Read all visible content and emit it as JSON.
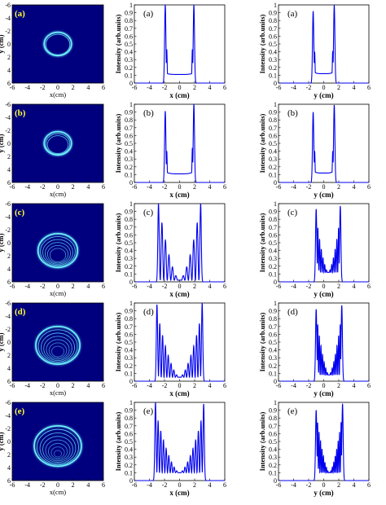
{
  "colors": {
    "line": "#0000ee",
    "image_bg": "#00007f",
    "ring": "#6ff3ff",
    "panel_label_on_image": "#ffff33"
  },
  "image_axes": {
    "xlabel": "x(cm)",
    "ylabel": "y (cm)",
    "xticks": [
      "-6",
      "-4",
      "-2",
      "0",
      "2",
      "4",
      "6"
    ],
    "yticks": [
      "-6",
      "-4",
      "-2",
      "0",
      "2",
      "4",
      "6"
    ]
  },
  "plot_axes": {
    "xticks": [
      "-6",
      "-4",
      "-2",
      "0",
      "2",
      "4",
      "6"
    ],
    "yticks": [
      "0",
      "0.1",
      "0.2",
      "0.3",
      "0.4",
      "0.5",
      "0.6",
      "0.7",
      "0.8",
      "0.9",
      "1"
    ],
    "xlim": [
      -6,
      6
    ],
    "ylim": [
      0,
      1
    ]
  },
  "chart_data": [
    {
      "type": "heatmap",
      "panel": "(a)",
      "xlabel": "x(cm)",
      "ylabel": "y (cm)",
      "xlim": [
        -6,
        6
      ],
      "ylim": [
        6,
        -6
      ],
      "ring_center": [
        0,
        0
      ],
      "ring_radius": 1.8,
      "inner_rings": 1
    },
    {
      "type": "line",
      "panel": "(a)",
      "xlabel": "x (cm)",
      "ylabel": "Intensity (arb.units)",
      "xlim": [
        -6,
        6
      ],
      "ylim": [
        0,
        1
      ],
      "peaks": [
        {
          "x": -1.9,
          "y": 1.0
        },
        {
          "x": 1.9,
          "y": 1.0
        }
      ],
      "shoulder_peaks": [
        {
          "x": -1.7,
          "y": 0.43
        },
        {
          "x": 1.7,
          "y": 0.43
        }
      ],
      "inner_level": 0.13,
      "ripple_amplitude": 0,
      "ripple_count": 0,
      "center_min": 0.11
    },
    {
      "type": "line",
      "panel": "(a)",
      "xlabel": "y (cm)",
      "ylabel": "Intensity (arb.units)",
      "xlim": [
        -6,
        6
      ],
      "ylim": [
        0,
        1
      ],
      "peaks": [
        {
          "x": -1.4,
          "y": 0.92
        },
        {
          "x": 1.4,
          "y": 1.0
        }
      ],
      "shoulder_peaks": [
        {
          "x": -1.2,
          "y": 0.4
        },
        {
          "x": 1.2,
          "y": 0.41
        }
      ],
      "inner_level": 0.15,
      "ripple_amplitude": 0,
      "ripple_count": 0,
      "center_min": 0.12
    },
    {
      "type": "heatmap",
      "panel": "(b)",
      "xlabel": "x(cm)",
      "ylabel": "y (cm)",
      "xlim": [
        -6,
        6
      ],
      "ylim": [
        6,
        -6
      ],
      "ring_center": [
        0,
        0
      ],
      "ring_radius": 1.8,
      "inner_rings": 2
    },
    {
      "type": "line",
      "panel": "(b)",
      "xlabel": "x (cm)",
      "ylabel": "Intensity (arb.units)",
      "xlim": [
        -6,
        6
      ],
      "ylim": [
        0,
        1
      ],
      "peaks": [
        {
          "x": -1.9,
          "y": 0.91
        },
        {
          "x": 1.9,
          "y": 1.0
        }
      ],
      "shoulder_peaks": [
        {
          "x": -1.7,
          "y": 0.4
        },
        {
          "x": 1.7,
          "y": 0.44
        }
      ],
      "inner_level": 0.14,
      "ripple_amplitude": 0,
      "ripple_count": 0,
      "center_min": 0.11
    },
    {
      "type": "line",
      "panel": "(b)",
      "xlabel": "y (cm)",
      "ylabel": "Intensity (arb.units)",
      "xlim": [
        -6,
        6
      ],
      "ylim": [
        0,
        1
      ],
      "peaks": [
        {
          "x": -1.4,
          "y": 0.9
        },
        {
          "x": 1.4,
          "y": 0.99
        }
      ],
      "shoulder_peaks": [
        {
          "x": -1.2,
          "y": 0.4
        },
        {
          "x": 1.2,
          "y": 0.4
        }
      ],
      "inner_level": 0.15,
      "ripple_amplitude": 0,
      "ripple_count": 0,
      "center_min": 0.12
    },
    {
      "type": "heatmap",
      "panel": "(c)",
      "xlabel": "x(cm)",
      "ylabel": "y (cm)",
      "xlim": [
        -6,
        6
      ],
      "ylim": [
        6,
        -6
      ],
      "ring_center": [
        0,
        1.2
      ],
      "ring_radius": 2.6,
      "inner_rings": 5
    },
    {
      "type": "line",
      "panel": "(c)",
      "xlabel": "x (cm)",
      "ylabel": "Intensity (arb.units)",
      "xlim": [
        -6,
        6
      ],
      "ylim": [
        0,
        1
      ],
      "peaks": [
        {
          "x": -2.8,
          "y": 1.0
        },
        {
          "x": 2.8,
          "y": 1.0
        }
      ],
      "shoulder_peaks": [],
      "inner_level": 0.55,
      "ripple_amplitude": 0.45,
      "ripple_count": 12,
      "center_min": 0.02
    },
    {
      "type": "line",
      "panel": "(c)",
      "xlabel": "y (cm)",
      "ylabel": "Intensity (arb.units)",
      "xlim": [
        -6,
        6
      ],
      "ylim": [
        0,
        1
      ],
      "peaks": [
        {
          "x": -1.0,
          "y": 0.93
        },
        {
          "x": 2.2,
          "y": 0.97
        }
      ],
      "shoulder_peaks": [
        {
          "x": -0.7,
          "y": 0.25
        }
      ],
      "inner_level": 0.55,
      "ripple_amplitude": 0.3,
      "ripple_count": 14,
      "center_min": 0.12
    },
    {
      "type": "heatmap",
      "panel": "(d)",
      "xlabel": "x(cm)",
      "ylabel": "y (cm)",
      "xlim": [
        -6,
        6
      ],
      "ylim": [
        6,
        -6
      ],
      "ring_center": [
        0,
        0.5
      ],
      "ring_radius": 2.9,
      "inner_rings": 6
    },
    {
      "type": "line",
      "panel": "(d)",
      "xlabel": "x (cm)",
      "ylabel": "Intensity (arb.units)",
      "xlim": [
        -6,
        6
      ],
      "ylim": [
        0,
        1
      ],
      "peaks": [
        {
          "x": -3.0,
          "y": 0.98
        },
        {
          "x": 3.0,
          "y": 1.0
        }
      ],
      "shoulder_peaks": [],
      "inner_level": 0.5,
      "ripple_amplitude": 0.4,
      "ripple_count": 16,
      "center_min": 0.05
    },
    {
      "type": "line",
      "panel": "(d)",
      "xlabel": "y (cm)",
      "ylabel": "Intensity (arb.units)",
      "xlim": [
        -6,
        6
      ],
      "ylim": [
        0,
        1
      ],
      "peaks": [
        {
          "x": -1.0,
          "y": 0.92
        },
        {
          "x": 2.4,
          "y": 0.97
        }
      ],
      "shoulder_peaks": [
        {
          "x": -0.7,
          "y": 0.13
        }
      ],
      "inner_level": 0.55,
      "ripple_amplitude": 0.33,
      "ripple_count": 16,
      "center_min": 0.08
    },
    {
      "type": "heatmap",
      "panel": "(e)",
      "xlabel": "x(cm)",
      "ylabel": "y (cm)",
      "xlim": [
        -6,
        6
      ],
      "ylim": [
        6,
        -6
      ],
      "ring_center": [
        0,
        0.7
      ],
      "ring_radius": 3.1,
      "inner_rings": 7
    },
    {
      "type": "line",
      "panel": "(e)",
      "xlabel": "x (cm)",
      "ylabel": "Intensity (arb.units)",
      "xlim": [
        -6,
        6
      ],
      "ylim": [
        0,
        1
      ],
      "peaks": [
        {
          "x": -3.2,
          "y": 1.0
        },
        {
          "x": 3.2,
          "y": 0.98
        }
      ],
      "shoulder_peaks": [],
      "inner_level": 0.5,
      "ripple_amplitude": 0.4,
      "ripple_count": 18,
      "center_min": 0.1
    },
    {
      "type": "line",
      "panel": "(e)",
      "xlabel": "y (cm)",
      "ylabel": "Intensity (arb.units)",
      "xlim": [
        -6,
        6
      ],
      "ylim": [
        0,
        1
      ],
      "peaks": [
        {
          "x": -1.0,
          "y": 0.9
        },
        {
          "x": 2.5,
          "y": 0.98
        }
      ],
      "shoulder_peaks": [
        {
          "x": -0.7,
          "y": 0.16
        }
      ],
      "inner_level": 0.55,
      "ripple_amplitude": 0.33,
      "ripple_count": 18,
      "center_min": 0.1
    }
  ]
}
